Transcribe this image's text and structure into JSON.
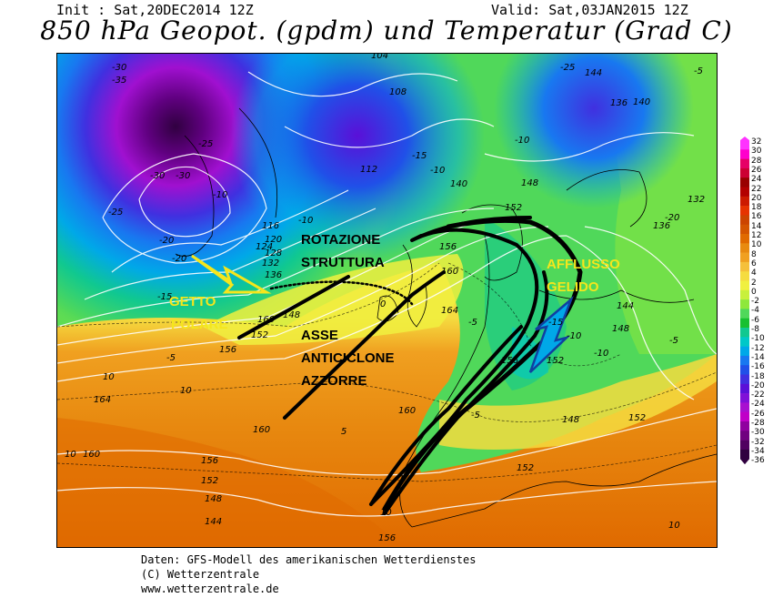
{
  "header": {
    "init": "Init : Sat,20DEC2014 12Z",
    "valid": "Valid: Sat,03JAN2015 12Z",
    "title": "850 hPa Geopot. (gpdm) und Temperatur (Grad C)"
  },
  "annotations": {
    "rotazione": "ROTAZIONE",
    "struttura": "STRUTTURA",
    "getto": "GETTO",
    "polare": "POLARE",
    "asse": "ASSE",
    "anticiclone": "ANTICICLONE",
    "azzorre": "AZZORRE",
    "afflusso": "AFFLUSSO",
    "gelido": "GELIDO"
  },
  "colorbar": {
    "labels": [
      "32",
      "30",
      "28",
      "26",
      "24",
      "22",
      "20",
      "18",
      "16",
      "14",
      "12",
      "10",
      "8",
      "6",
      "4",
      "2",
      "0",
      "-2",
      "-4",
      "-6",
      "-8",
      "-10",
      "-12",
      "-14",
      "-16",
      "-18",
      "-20",
      "-22",
      "-24",
      "-26",
      "-28",
      "-30",
      "-32",
      "-34",
      "-36"
    ],
    "colors": [
      "#ff33ff",
      "#ff00cc",
      "#e60066",
      "#cc0033",
      "#990000",
      "#b30000",
      "#cc1a00",
      "#e63300",
      "#cc4400",
      "#d45500",
      "#e06a00",
      "#e88a10",
      "#f0a020",
      "#f5c03a",
      "#f5dc40",
      "#f0f040",
      "#c8f03c",
      "#8ee83c",
      "#50d85a",
      "#18c030",
      "#10c890",
      "#00c8c8",
      "#00a8e8",
      "#1878f0",
      "#2050e8",
      "#4030e0",
      "#5a10d8",
      "#8010d8",
      "#a810d0",
      "#c000c8",
      "#9000a0",
      "#700080",
      "#500060",
      "#300040"
    ]
  },
  "geopotential_labels": [
    "144",
    "136",
    "132",
    "128",
    "124",
    "120",
    "116",
    "112",
    "108",
    "104",
    "140",
    "148",
    "152",
    "156",
    "160",
    "164"
  ],
  "temperature_labels": [
    "-30",
    "-35",
    "-25",
    "-20",
    "-15",
    "-10",
    "-5",
    "0",
    "5",
    "10"
  ],
  "footer": {
    "line1": "Daten: GFS-Modell des amerikanischen Wetterdienstes",
    "line2": "(C) Wetterzentrale",
    "line3": "www.wetterzentrale.de"
  },
  "colors": {
    "annotation_yellow": "#f5e61c",
    "annotation_black": "#000000",
    "contour_white": "#ffffff"
  }
}
